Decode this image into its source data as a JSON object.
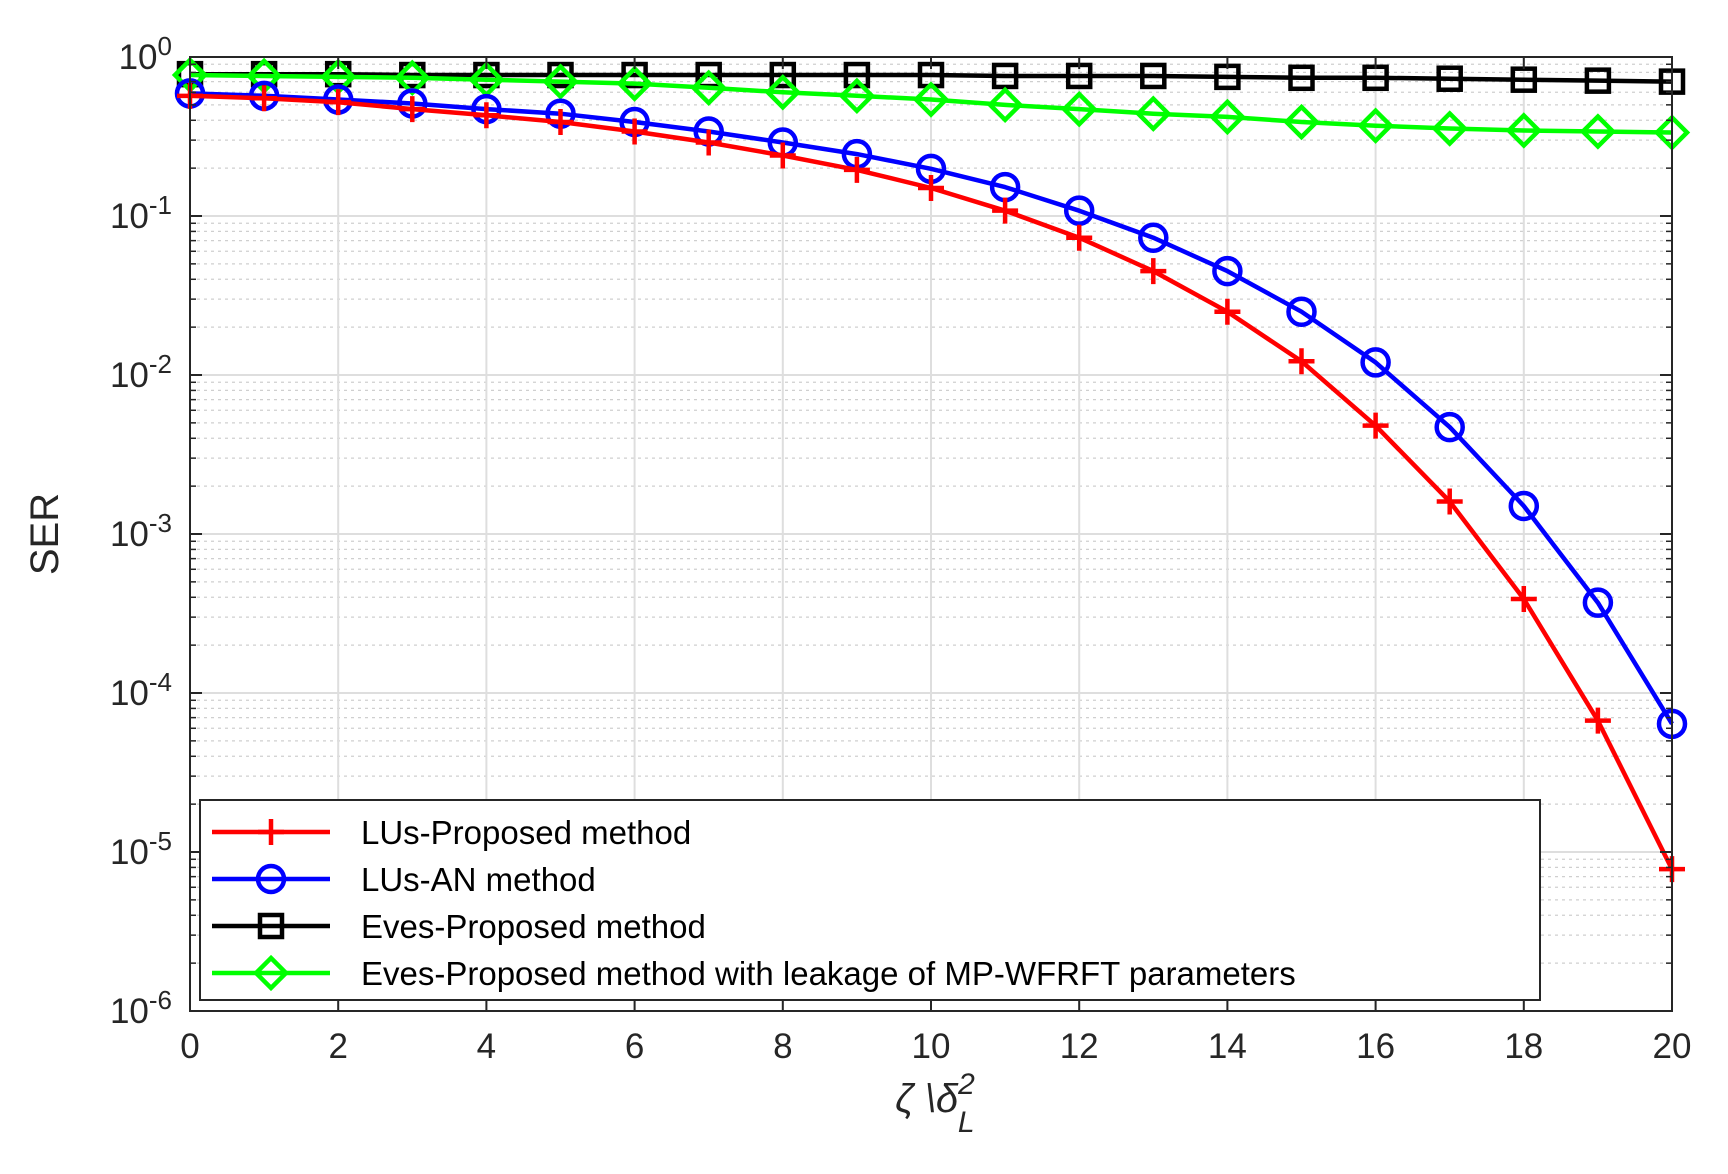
{
  "chart_data": {
    "type": "line",
    "title": "",
    "xlabel": "ζ \\δ",
    "xlabel_sup": "2",
    "xlabel_sub": "L",
    "ylabel": "SER",
    "yscale": "log",
    "xlim": [
      0,
      20
    ],
    "ylim": [
      1e-06,
      1
    ],
    "grid": true,
    "minor_grid": true,
    "legend_position": "bottom-left",
    "x_ticks": [
      0,
      2,
      4,
      6,
      8,
      10,
      12,
      14,
      16,
      18,
      20
    ],
    "y_ticks": [
      {
        "exp": -6,
        "base": "10",
        "sup": "-6"
      },
      {
        "exp": -5,
        "base": "10",
        "sup": "-5"
      },
      {
        "exp": -4,
        "base": "10",
        "sup": "-4"
      },
      {
        "exp": -3,
        "base": "10",
        "sup": "-3"
      },
      {
        "exp": -2,
        "base": "10",
        "sup": "-2"
      },
      {
        "exp": -1,
        "base": "10",
        "sup": "-1"
      },
      {
        "exp": 0,
        "base": "10",
        "sup": "0"
      }
    ],
    "x": [
      0,
      1,
      2,
      3,
      4,
      5,
      6,
      7,
      8,
      9,
      10,
      11,
      12,
      13,
      14,
      15,
      16,
      17,
      18,
      19,
      20
    ],
    "series": [
      {
        "name": "LUs-Proposed method",
        "color": "#ff0000",
        "marker": "plus",
        "values": [
          0.57,
          0.55,
          0.52,
          0.47,
          0.43,
          0.39,
          0.34,
          0.29,
          0.24,
          0.195,
          0.15,
          0.108,
          0.073,
          0.045,
          0.025,
          0.0122,
          0.0048,
          0.0016,
          0.00039,
          6.7e-05,
          7.8e-06
        ]
      },
      {
        "name": "LUs-AN method",
        "color": "#0000ff",
        "marker": "circle",
        "values": [
          0.59,
          0.57,
          0.54,
          0.51,
          0.47,
          0.44,
          0.39,
          0.34,
          0.29,
          0.245,
          0.198,
          0.152,
          0.108,
          0.073,
          0.045,
          0.025,
          0.012,
          0.0047,
          0.0015,
          0.00037,
          6.4e-05
        ]
      },
      {
        "name": "Eves-Proposed method",
        "color": "#000000",
        "marker": "square",
        "values": [
          0.78,
          0.78,
          0.78,
          0.77,
          0.77,
          0.77,
          0.77,
          0.77,
          0.77,
          0.77,
          0.77,
          0.76,
          0.76,
          0.76,
          0.75,
          0.74,
          0.74,
          0.73,
          0.72,
          0.71,
          0.7
        ]
      },
      {
        "name": "Eves-Proposed method with leakage of MP-WFRFT parameters",
        "color": "#00ff00",
        "marker": "diamond",
        "values": [
          0.77,
          0.76,
          0.75,
          0.74,
          0.72,
          0.7,
          0.68,
          0.64,
          0.6,
          0.57,
          0.54,
          0.5,
          0.47,
          0.44,
          0.42,
          0.39,
          0.37,
          0.355,
          0.345,
          0.34,
          0.335
        ]
      }
    ]
  }
}
